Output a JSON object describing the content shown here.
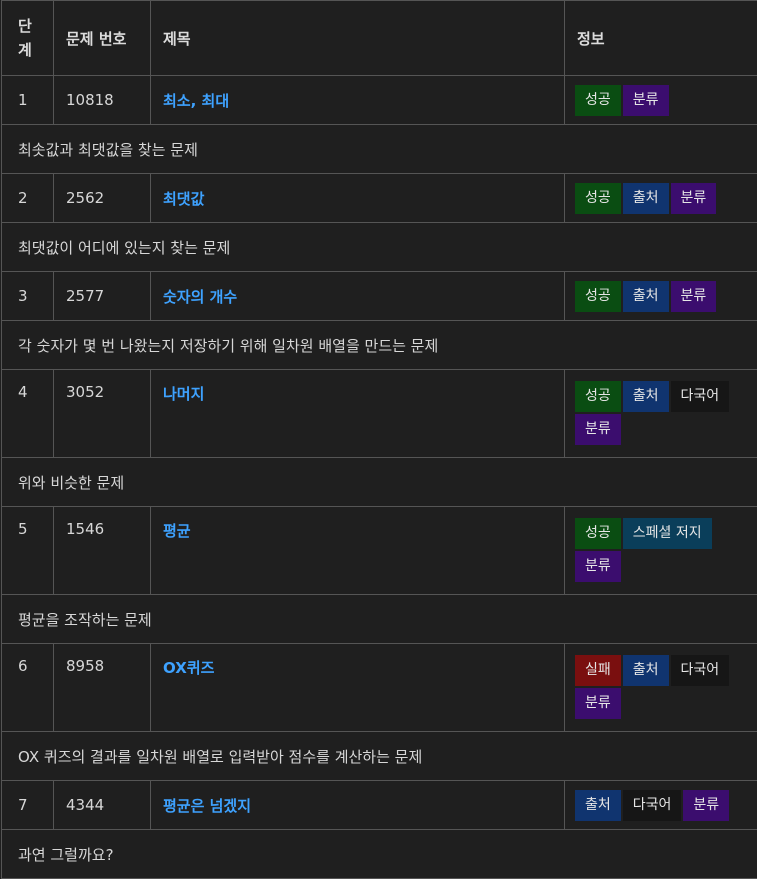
{
  "header": {
    "level": "단계",
    "number": "문제 번호",
    "title": "제목",
    "info": "정보"
  },
  "tag_labels": {
    "success": "성공",
    "fail": "실패",
    "source": "출처",
    "category": "분류",
    "multilang": "다국어",
    "special_judge": "스페셜 저지"
  },
  "colors": {
    "success": "#0a4d12",
    "fail": "#7a0f0f",
    "source": "#10346f",
    "category": "#3b0d6e",
    "multilang": "#161616",
    "special_judge": "#0a3e5a",
    "link": "#3ea2ff"
  },
  "problems": [
    {
      "level": "1",
      "number": "10818",
      "title": "최소, 최대",
      "tags": [
        "성공",
        "분류"
      ],
      "desc": "최솟값과 최댓값을 찾는 문제"
    },
    {
      "level": "2",
      "number": "2562",
      "title": "최댓값",
      "tags": [
        "성공",
        "출처",
        "분류"
      ],
      "desc": "최댓값이 어디에 있는지 찾는 문제"
    },
    {
      "level": "3",
      "number": "2577",
      "title": "숫자의 개수",
      "tags": [
        "성공",
        "출처",
        "분류"
      ],
      "desc": "각 숫자가 몇 번 나왔는지 저장하기 위해 일차원 배열을 만드는 문제"
    },
    {
      "level": "4",
      "number": "3052",
      "title": "나머지",
      "tags": [
        "성공",
        "출처",
        "다국어",
        "분류"
      ],
      "desc": "위와 비슷한 문제"
    },
    {
      "level": "5",
      "number": "1546",
      "title": "평균",
      "tags": [
        "성공",
        "스페셜 저지",
        "분류"
      ],
      "desc": "평균을 조작하는 문제"
    },
    {
      "level": "6",
      "number": "8958",
      "title": "OX퀴즈",
      "tags": [
        "실패",
        "출처",
        "다국어",
        "분류"
      ],
      "desc": "OX 퀴즈의 결과를 일차원 배열로 입력받아 점수를 계산하는 문제"
    },
    {
      "level": "7",
      "number": "4344",
      "title": "평균은 넘겠지",
      "tags": [
        "출처",
        "다국어",
        "분류"
      ],
      "desc": "과연 그럴까요?"
    }
  ]
}
